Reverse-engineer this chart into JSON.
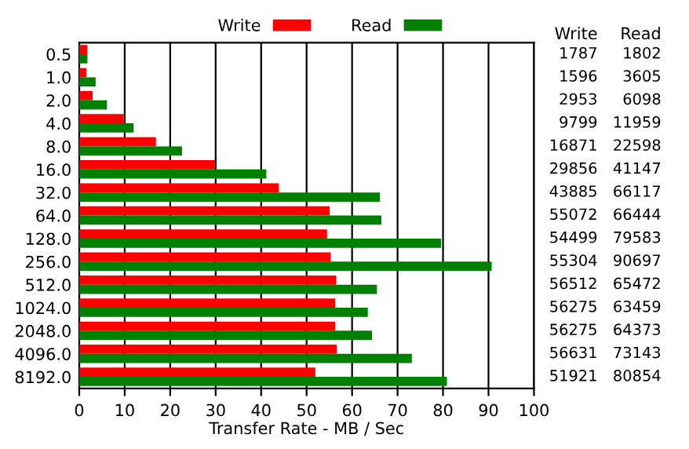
{
  "chart_data": {
    "type": "bar",
    "orientation": "horizontal",
    "xlabel": "Transfer Rate - MB / Sec",
    "categories": [
      "0.5",
      "1.0",
      "2.0",
      "4.0",
      "8.0",
      "16.0",
      "32.0",
      "64.0",
      "128.0",
      "256.0",
      "512.0",
      "1024.0",
      "2048.0",
      "4096.0",
      "8192.0"
    ],
    "series": [
      {
        "name": "Write",
        "color": "#ff0000",
        "values": [
          1.787,
          1.596,
          2.953,
          9.799,
          16.871,
          29.856,
          43.885,
          55.072,
          54.499,
          55.304,
          56.512,
          56.275,
          56.275,
          56.631,
          51.921
        ]
      },
      {
        "name": "Read",
        "color": "#008000",
        "values": [
          1.802,
          3.605,
          6.098,
          11.959,
          22.598,
          41.147,
          66.117,
          66.444,
          79.583,
          90.697,
          65.472,
          63.459,
          64.373,
          73.143,
          80.854
        ]
      }
    ],
    "annotations": [
      "Write",
      "Read",
      "1787",
      "1802",
      "1596",
      "3605",
      "2953",
      "6098",
      "9799",
      "11959",
      "16871",
      "22598",
      "29856",
      "41147",
      "43885",
      "66117",
      "55072",
      "66444",
      "54499",
      "79583",
      "55304",
      "90697",
      "56512",
      "65472",
      "56275",
      "63459",
      "56275",
      "64373",
      "56631",
      "73143",
      "51921",
      "80854"
    ],
    "xlim": [
      0,
      100
    ],
    "xticks": [
      0,
      10,
      20,
      30,
      40,
      50,
      60,
      70,
      80,
      90,
      100
    ],
    "grid": "x",
    "legend": "top"
  }
}
